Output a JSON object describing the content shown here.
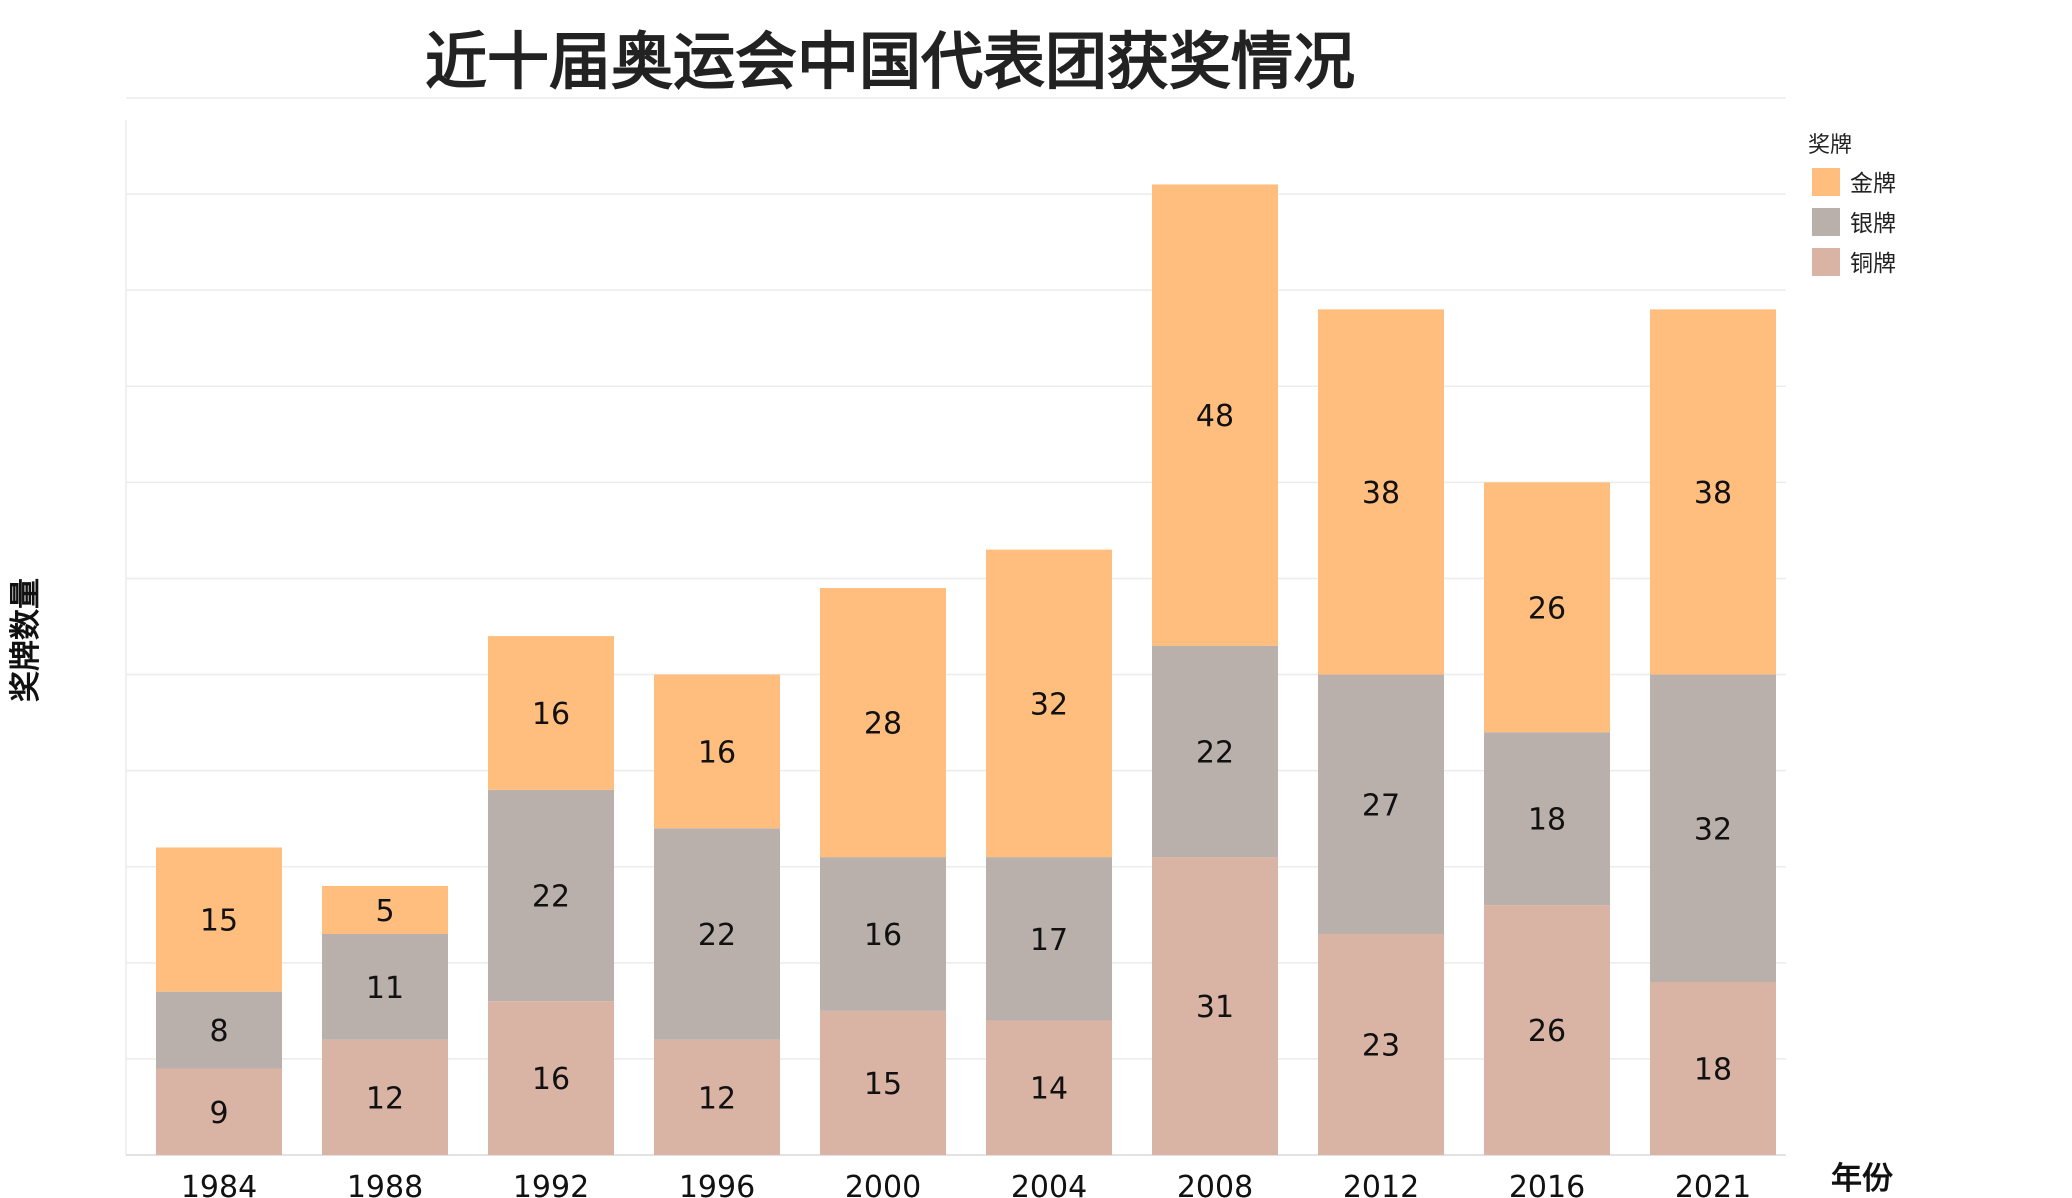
{
  "chart_data": {
    "type": "bar",
    "stacked": true,
    "title": "近十届奥运会中国代表团获奖情况",
    "xlabel": "年份",
    "ylabel": "奖牌数量",
    "categories": [
      "1984",
      "1988",
      "1992",
      "1996",
      "2000",
      "2004",
      "2008",
      "2012",
      "2016",
      "2021"
    ],
    "series": [
      {
        "name": "铜牌",
        "values": [
          9,
          12,
          16,
          12,
          15,
          14,
          31,
          23,
          26,
          18
        ],
        "color": "#d9b3a4"
      },
      {
        "name": "银牌",
        "values": [
          8,
          11,
          22,
          22,
          16,
          17,
          22,
          27,
          18,
          32
        ],
        "color": "#bab0ab"
      },
      {
        "name": "金牌",
        "values": [
          15,
          5,
          16,
          16,
          28,
          32,
          48,
          38,
          26,
          38
        ],
        "color": "#ffbe7d"
      }
    ],
    "hidden_labels": [
      [],
      [],
      [],
      [],
      [],
      [],
      [],
      [],
      [],
      []
    ],
    "ylim": [
      0,
      110
    ],
    "y_ticks_shown": false,
    "grid": true,
    "legend": {
      "title": "奖牌",
      "position": "top-right",
      "order": [
        "金牌",
        "银牌",
        "铜牌"
      ]
    }
  }
}
